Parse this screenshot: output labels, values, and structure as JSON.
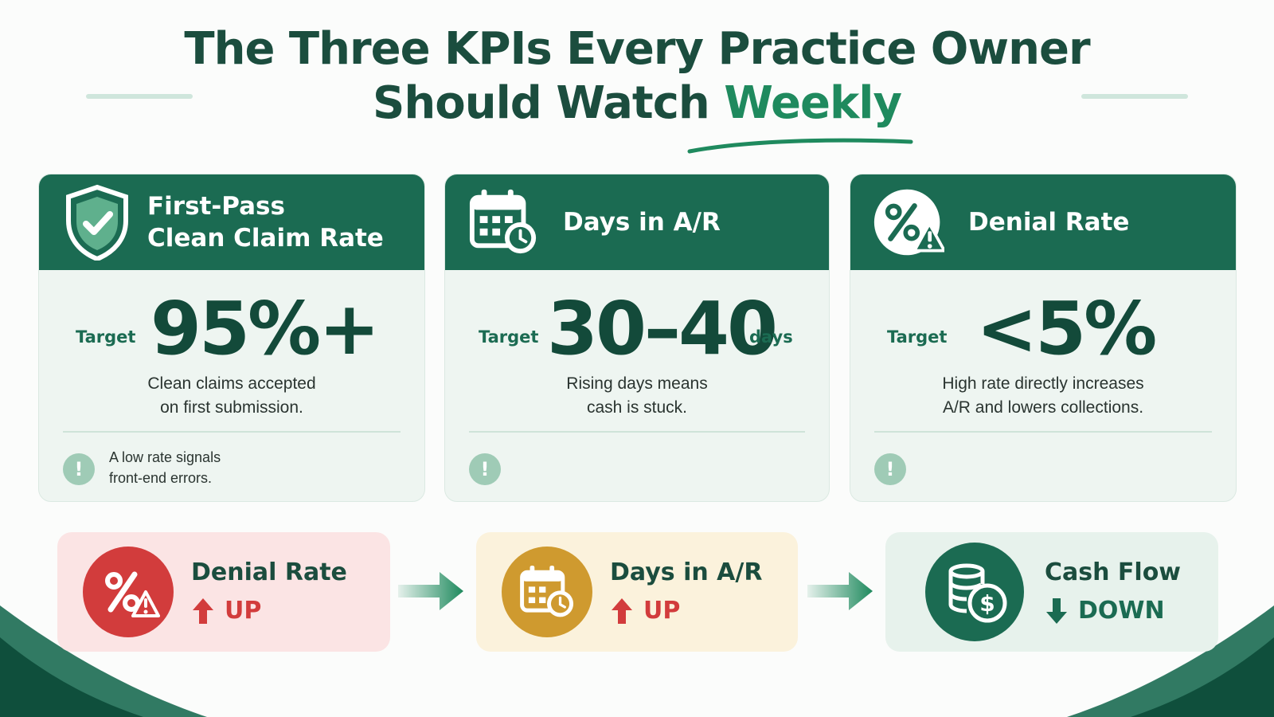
{
  "title": {
    "line1": "The Three KPIs Every Practice Owner",
    "line2_main": "Should Watch ",
    "line2_accent": "Weekly"
  },
  "cards": [
    {
      "icon": "shield-check-icon",
      "title_line1": "First-Pass",
      "title_line2": "Clean Claim Rate",
      "target_label": "Target",
      "target_value": "95%+",
      "target_unit": "",
      "desc_line1": "Clean claims accepted",
      "desc_line2": "on first submission.",
      "warn_icon": "exclamation-icon",
      "warn_line1": "A low rate signals",
      "warn_line2": "front-end errors."
    },
    {
      "icon": "calendar-clock-icon",
      "title": "Days in A/R",
      "target_label": "Target",
      "target_value": "30–40",
      "target_unit": "days",
      "desc_line1": "Rising days means",
      "desc_line2": "cash is stuck.",
      "warn_icon": "exclamation-icon"
    },
    {
      "icon": "percent-warning-icon",
      "title": "Denial Rate",
      "target_label": "Target",
      "target_value": "<5%",
      "target_unit": "",
      "desc_line1": "High rate directly increases",
      "desc_line2": "A/R and lowers collections.",
      "warn_icon": "exclamation-icon"
    }
  ],
  "chain": [
    {
      "icon": "percent-warning-icon",
      "label": "Denial Rate",
      "direction": "UP",
      "color": "#d23c3c"
    },
    {
      "icon": "calendar-clock-icon",
      "label": "Days in A/R",
      "direction": "UP",
      "color": "#cf9a2f"
    },
    {
      "icon": "coins-dollar-icon",
      "label": "Cash Flow",
      "direction": "DOWN",
      "color": "#1b6b52"
    }
  ],
  "colors": {
    "primary": "#1b6b52",
    "accent": "#1f8a5e",
    "danger": "#d23c3c",
    "warning": "#cf9a2f"
  }
}
